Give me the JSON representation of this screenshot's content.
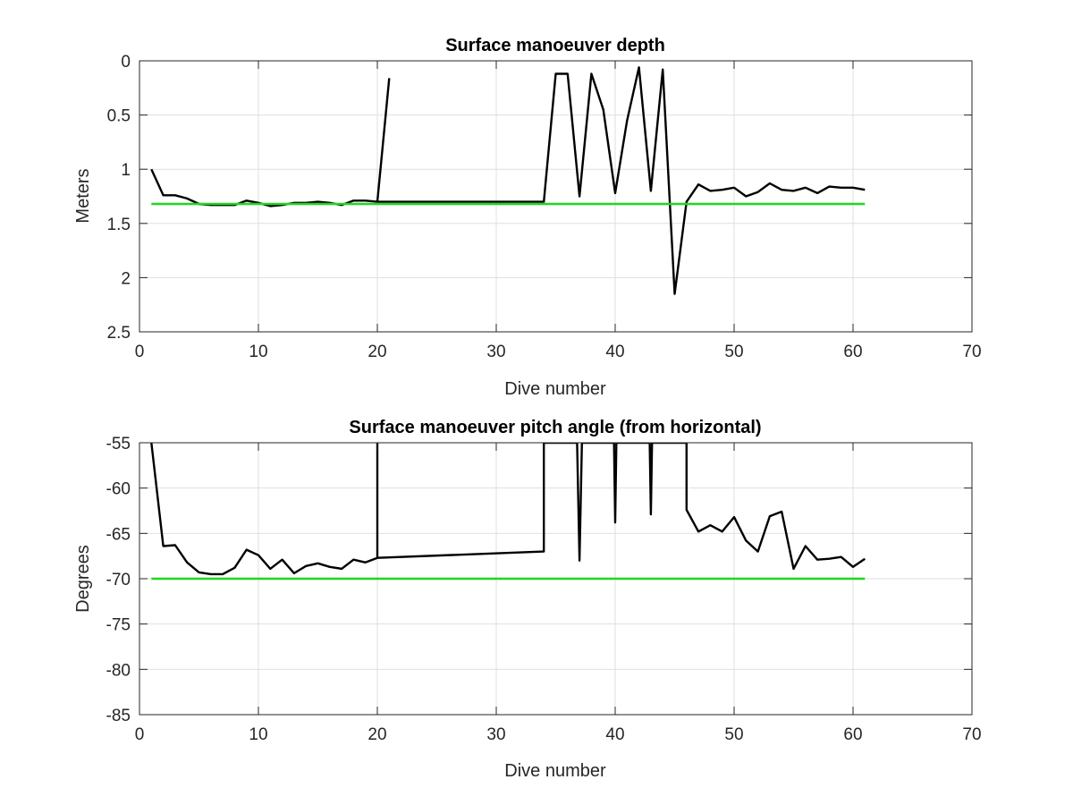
{
  "chart_data": [
    {
      "type": "line",
      "title": "Surface manoeuver depth",
      "xlabel": "Dive number",
      "ylabel": "Meters",
      "xlim": [
        0,
        70
      ],
      "ylim": [
        0,
        2.5
      ],
      "y_reversed": true,
      "xticks": [
        0,
        10,
        20,
        30,
        40,
        50,
        60,
        70
      ],
      "xtick_labels": [
        "0",
        "10",
        "20",
        "30",
        "40",
        "50",
        "60",
        "70"
      ],
      "yticks": [
        0,
        0.5,
        1,
        1.5,
        2,
        2.5
      ],
      "ytick_labels": [
        "0",
        "0.5",
        "1",
        "1.5",
        "2",
        "2.5"
      ],
      "grid": true,
      "series": [
        {
          "color": "#000000",
          "points": [
            [
              1,
              1.0
            ],
            [
              2,
              1.24
            ],
            [
              3,
              1.24
            ],
            [
              4,
              1.27
            ],
            [
              5,
              1.32
            ],
            [
              6,
              1.33
            ],
            [
              7,
              1.33
            ],
            [
              8,
              1.33
            ],
            [
              9,
              1.29
            ],
            [
              10,
              1.31
            ],
            [
              11,
              1.34
            ],
            [
              12,
              1.33
            ],
            [
              13,
              1.31
            ],
            [
              14,
              1.31
            ],
            [
              15,
              1.3
            ],
            [
              16,
              1.31
            ],
            [
              17,
              1.33
            ],
            [
              18,
              1.29
            ],
            [
              19,
              1.29
            ],
            [
              20,
              1.3
            ],
            [
              21,
              0.16
            ],
            null,
            [
              20,
              1.3
            ],
            [
              34,
              1.3
            ],
            [
              35,
              0.12
            ],
            [
              36,
              0.12
            ],
            [
              37,
              1.25
            ],
            [
              38,
              0.12
            ],
            [
              39,
              0.45
            ],
            [
              40,
              1.22
            ],
            [
              41,
              0.55
            ],
            [
              42,
              0.06
            ],
            [
              43,
              1.2
            ],
            [
              44,
              0.08
            ],
            [
              45,
              2.15
            ],
            [
              46,
              1.3
            ],
            [
              47,
              1.14
            ],
            [
              48,
              1.2
            ],
            [
              49,
              1.19
            ],
            [
              50,
              1.17
            ],
            [
              51,
              1.25
            ],
            [
              52,
              1.21
            ],
            [
              53,
              1.13
            ],
            [
              54,
              1.19
            ],
            [
              55,
              1.2
            ],
            [
              56,
              1.17
            ],
            [
              57,
              1.22
            ],
            [
              58,
              1.16
            ],
            [
              59,
              1.17
            ],
            [
              60,
              1.17
            ],
            [
              61,
              1.19
            ]
          ]
        },
        {
          "color": "#1fd61f",
          "points": [
            [
              1,
              1.32
            ],
            [
              61,
              1.32
            ]
          ]
        }
      ]
    },
    {
      "type": "line",
      "title": "Surface manoeuver pitch angle (from horizontal)",
      "xlabel": "Dive number",
      "ylabel": "Degrees",
      "xlim": [
        0,
        70
      ],
      "ylim": [
        -85,
        -55
      ],
      "y_reversed": false,
      "xticks": [
        0,
        10,
        20,
        30,
        40,
        50,
        60,
        70
      ],
      "xtick_labels": [
        "0",
        "10",
        "20",
        "30",
        "40",
        "50",
        "60",
        "70"
      ],
      "yticks": [
        -55,
        -60,
        -65,
        -70,
        -75,
        -80,
        -85
      ],
      "ytick_labels": [
        "-55",
        "-60",
        "-65",
        "-70",
        "-75",
        "-80",
        "-85"
      ],
      "grid": true,
      "series": [
        {
          "color": "#000000",
          "points": [
            [
              1,
              -55
            ],
            [
              2,
              -66.4
            ],
            [
              3,
              -66.3
            ],
            [
              4,
              -68.2
            ],
            [
              5,
              -69.3
            ],
            [
              6,
              -69.5
            ],
            [
              7,
              -69.5
            ],
            [
              8,
              -68.8
            ],
            [
              9,
              -66.8
            ],
            [
              10,
              -67.4
            ],
            [
              11,
              -68.9
            ],
            [
              12,
              -67.9
            ],
            [
              13,
              -69.4
            ],
            [
              14,
              -68.6
            ],
            [
              15,
              -68.3
            ],
            [
              16,
              -68.7
            ],
            [
              17,
              -68.9
            ],
            [
              18,
              -67.9
            ],
            [
              19,
              -68.2
            ],
            [
              20,
              -67.7
            ],
            [
              20,
              -55
            ],
            [
              20,
              -67.7
            ],
            [
              34,
              -67.0
            ],
            [
              34,
              -55
            ],
            [
              36.8,
              -55
            ],
            [
              37,
              -68.0
            ],
            [
              37.2,
              -55
            ],
            [
              39.9,
              -55
            ],
            [
              40,
              -63.8
            ],
            [
              40.1,
              -55
            ],
            [
              42.9,
              -55
            ],
            [
              43,
              -62.9
            ],
            [
              43.1,
              -55
            ],
            [
              46,
              -55
            ],
            [
              46,
              -62.4
            ],
            [
              47,
              -64.8
            ],
            [
              48,
              -64.1
            ],
            [
              49,
              -64.8
            ],
            [
              50,
              -63.2
            ],
            [
              51,
              -65.8
            ],
            [
              52,
              -67.0
            ],
            [
              53,
              -63.1
            ],
            [
              54,
              -62.6
            ],
            [
              55,
              -68.9
            ],
            [
              56,
              -66.4
            ],
            [
              57,
              -67.9
            ],
            [
              58,
              -67.8
            ],
            [
              59,
              -67.6
            ],
            [
              60,
              -68.7
            ],
            [
              61,
              -67.8
            ]
          ]
        },
        {
          "color": "#1fd61f",
          "points": [
            [
              1,
              -70
            ],
            [
              61,
              -70
            ]
          ]
        }
      ]
    }
  ]
}
